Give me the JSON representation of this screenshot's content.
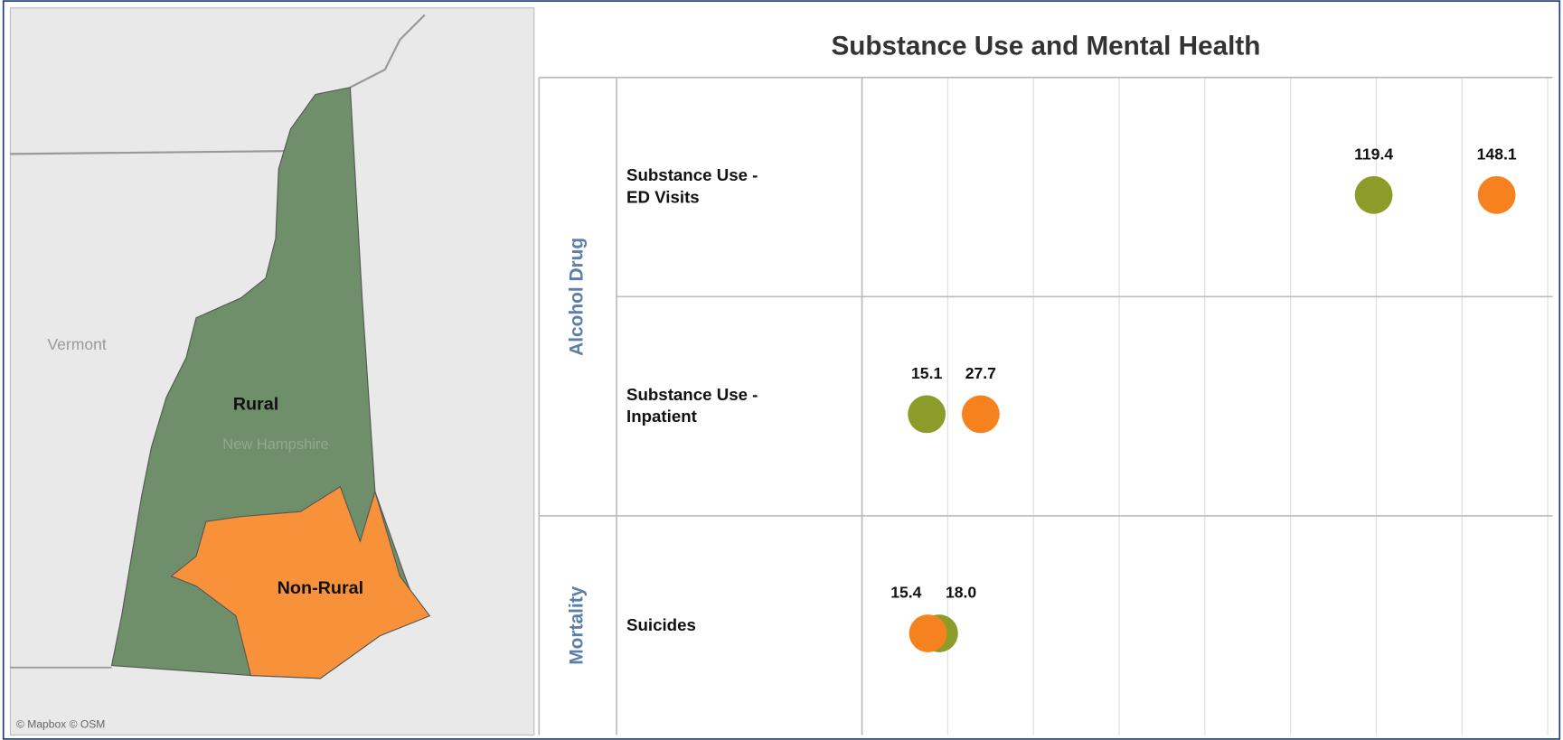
{
  "map": {
    "labels": [
      "Vermont",
      "New Hampshire"
    ],
    "attribution": "© Mapbox © OSM"
  },
  "chart_data": {
    "type": "dot",
    "title": "Substance Use and Mental Health",
    "groups": [
      {
        "name": "Alcohol Drug",
        "categories": [
          "Substance Use - ED Visits",
          "Substance Use - Inpatient"
        ]
      },
      {
        "name": "Mortality",
        "categories": [
          "Suicides"
        ]
      }
    ],
    "series": [
      {
        "name": "Rural",
        "color": "#8c9c2a",
        "values": [
          119.4,
          15.1,
          18.0
        ],
        "value_labels": [
          "119.4",
          "15.1",
          "18.0"
        ]
      },
      {
        "name": "Non-Rural",
        "color": "#f5821f",
        "values": [
          148.1,
          27.7,
          15.4
        ],
        "value_labels": [
          "148.1",
          "27.7",
          "15.4"
        ]
      }
    ],
    "map_colors": [
      "#6f8f6a",
      "#f7923a"
    ],
    "xlim": [
      0,
      160
    ],
    "xticks": [
      0,
      20,
      40,
      60,
      80,
      100,
      120,
      140,
      160
    ],
    "grid": true
  }
}
